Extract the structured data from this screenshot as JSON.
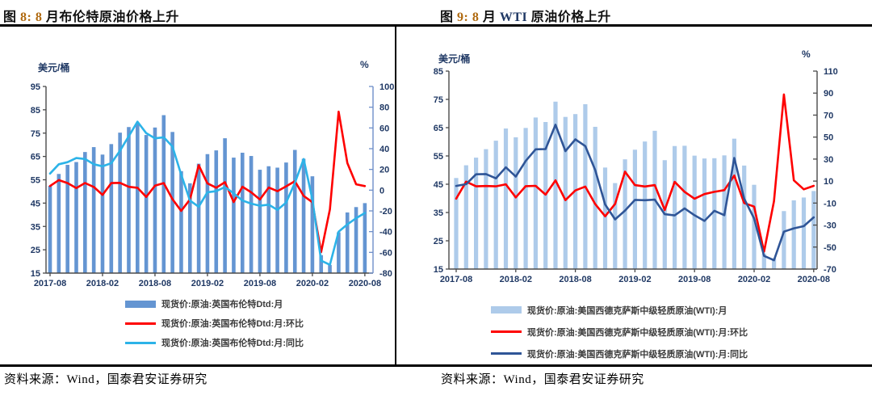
{
  "header": {
    "left_title_segments": [
      {
        "t": "图 ",
        "c": "#111111"
      },
      {
        "t": "8: 8 ",
        "c": "#B06A10"
      },
      {
        "t": "月布伦特原油价格上升",
        "c": "#111111"
      }
    ],
    "right_title_segments": [
      {
        "t": "图 ",
        "c": "#111111"
      },
      {
        "t": "9: 8 ",
        "c": "#B06A10"
      },
      {
        "t": "月 ",
        "c": "#111111"
      },
      {
        "t": "WTI ",
        "c": "#1F3864"
      },
      {
        "t": "原油价格上升",
        "c": "#111111"
      }
    ]
  },
  "footer": {
    "left_source": "资料来源：Wind，国泰君安证券研究",
    "right_source": "资料来源：Wind，国泰君安证券研究"
  },
  "colors": {
    "brent_bar": "#6495D2",
    "wti_bar": "#AECBEA",
    "mom_red": "#FE0000",
    "yoy_cyan": "#2CB3E8",
    "yoy_navy": "#2F5597",
    "axis_text": "#1F3864",
    "spine": "#4a4a4a",
    "left_chart_right_spine": "#6E8FC9"
  },
  "chart_data": [
    {
      "type": "bar+line combo, dual axis",
      "unit_left": "美元/桶",
      "unit_right": "%",
      "left_axis": {
        "min": 15,
        "max": 95,
        "step": 10
      },
      "right_axis": {
        "min": -80,
        "max": 100,
        "step": 20
      },
      "x_tick_every": 6,
      "x_tick_labels": [
        "2017-08",
        "2018-02",
        "2018-08",
        "2019-02",
        "2019-08",
        "2020-02",
        "2020-08"
      ],
      "categories": [
        "2017-08",
        "2017-09",
        "2017-10",
        "2017-11",
        "2017-12",
        "2018-01",
        "2018-02",
        "2018-03",
        "2018-04",
        "2018-05",
        "2018-06",
        "2018-07",
        "2018-08",
        "2018-09",
        "2018-10",
        "2018-11",
        "2018-12",
        "2019-01",
        "2019-02",
        "2019-03",
        "2019-04",
        "2019-05",
        "2019-06",
        "2019-07",
        "2019-08",
        "2019-09",
        "2019-10",
        "2019-11",
        "2019-12",
        "2020-01",
        "2020-02",
        "2020-03",
        "2020-04",
        "2020-05",
        "2020-06",
        "2020-07",
        "2020-08"
      ],
      "series": [
        {
          "name": "现货价:原油:英国布伦特Dtd:月",
          "type": "bar",
          "axis": "left",
          "color": "#6495D2",
          "values": [
            52.4,
            57.5,
            61.4,
            62.6,
            66.9,
            69.0,
            65.8,
            70.3,
            75.2,
            77.6,
            79.4,
            74.2,
            77.4,
            82.7,
            75.5,
            58.7,
            53.5,
            61.9,
            66.0,
            67.6,
            72.8,
            64.5,
            66.6,
            65.2,
            59.3,
            60.8,
            60.2,
            62.4,
            67.8,
            64.0,
            56.5,
            22.7,
            18.5,
            32.5,
            41.0,
            43.3,
            45.0
          ]
        },
        {
          "name": "现货价:原油:英国布伦特Dtd:月:环比",
          "type": "line",
          "axis": "right",
          "color": "#FE0000",
          "values": [
            4.0,
            9.7,
            6.8,
            2.0,
            6.9,
            3.1,
            -4.6,
            6.8,
            7.0,
            3.2,
            2.3,
            -6.5,
            4.3,
            6.8,
            -8.7,
            -20.0,
            -8.9,
            24.0,
            6.6,
            2.4,
            7.7,
            -11.4,
            3.3,
            -2.1,
            -9.0,
            2.5,
            -1.0,
            3.7,
            8.7,
            -5.6,
            -11.7,
            -59.8,
            -18.5,
            75.7,
            26.2,
            5.6,
            3.9
          ]
        },
        {
          "name": "现货价:原油:英国布伦特Dtd:月:同比",
          "type": "line",
          "axis": "right",
          "color": "#2CB3E8",
          "values": [
            16,
            25,
            27,
            31,
            30,
            25,
            23,
            26,
            38,
            52,
            66,
            55,
            50,
            51,
            42,
            15,
            -10,
            -16,
            -2,
            -1,
            3,
            -3,
            -10,
            -13,
            -15,
            -14,
            -19,
            -12,
            7,
            30,
            -9,
            -68,
            -72,
            -40,
            -33,
            -27,
            -22
          ]
        }
      ]
    },
    {
      "type": "bar+line combo, dual axis",
      "unit_left": "美元/桶",
      "unit_right": "%",
      "left_axis": {
        "min": 15,
        "max": 85,
        "step": 10
      },
      "right_axis": {
        "min": -70,
        "max": 110,
        "step": 20
      },
      "x_tick_every": 6,
      "x_tick_labels": [
        "2017-08",
        "2018-02",
        "2018-08",
        "2019-02",
        "2019-08",
        "2020-02",
        "2020-08"
      ],
      "categories": [
        "2017-08",
        "2017-09",
        "2017-10",
        "2017-11",
        "2017-12",
        "2018-01",
        "2018-02",
        "2018-03",
        "2018-04",
        "2018-05",
        "2018-06",
        "2018-07",
        "2018-08",
        "2018-09",
        "2018-10",
        "2018-11",
        "2018-12",
        "2019-01",
        "2019-02",
        "2019-03",
        "2019-04",
        "2019-05",
        "2019-06",
        "2019-07",
        "2019-08",
        "2019-09",
        "2019-10",
        "2019-11",
        "2019-12",
        "2020-01",
        "2020-02",
        "2020-03",
        "2020-04",
        "2020-05",
        "2020-06",
        "2020-07",
        "2020-08"
      ],
      "series": [
        {
          "name": "现货价:原油:美国西德克萨斯中级轻质原油(WTI):月",
          "type": "bar",
          "axis": "left",
          "color": "#AECBEA",
          "values": [
            47.2,
            51.7,
            54.4,
            57.4,
            60.4,
            64.7,
            61.6,
            64.9,
            68.6,
            67.0,
            74.2,
            68.8,
            69.8,
            73.3,
            65.3,
            50.9,
            45.4,
            53.8,
            57.2,
            60.1,
            63.9,
            53.5,
            58.5,
            58.6,
            55.1,
            54.1,
            54.2,
            55.2,
            61.1,
            51.6,
            44.8,
            20.5,
            18.8,
            35.5,
            39.3,
            40.3,
            42.6
          ]
        },
        {
          "name": "现货价:原油:美国西德克萨斯中级轻质原油(WTI):月:环比",
          "type": "line",
          "axis": "right",
          "color": "#FE0000",
          "values": [
            -6.0,
            9.5,
            5.2,
            5.5,
            5.2,
            7.1,
            -4.8,
            5.4,
            5.7,
            -2.3,
            10.7,
            -7.3,
            1.5,
            5.0,
            -10.9,
            -22.0,
            -10.8,
            18.5,
            6.3,
            5.1,
            6.3,
            -16.3,
            9.3,
            0.2,
            -6.0,
            -1.8,
            0.2,
            1.8,
            15.0,
            -10.0,
            -13.2,
            -54.2,
            -8.3,
            88.8,
            10.7,
            2.5,
            5.7
          ]
        },
        {
          "name": "现货价:原油:美国西德克萨斯中级轻质原油(WTI):月:同比",
          "type": "line",
          "axis": "right",
          "color": "#2F5597",
          "values": [
            5.6,
            7.2,
            16.2,
            16.4,
            12.5,
            22.5,
            14.1,
            28.3,
            38.9,
            39.1,
            61.2,
            37.3,
            47.9,
            41.8,
            20.0,
            -11.3,
            -24.8,
            -16.8,
            -7.1,
            -7.4,
            -6.9,
            -20.1,
            -21.2,
            -14.8,
            -21.1,
            -26.2,
            -17.0,
            -21.0,
            31.0,
            -6.0,
            -24.0,
            -58.0,
            -62.0,
            -36.0,
            -33.0,
            -31.0,
            -23.0
          ]
        }
      ]
    }
  ]
}
